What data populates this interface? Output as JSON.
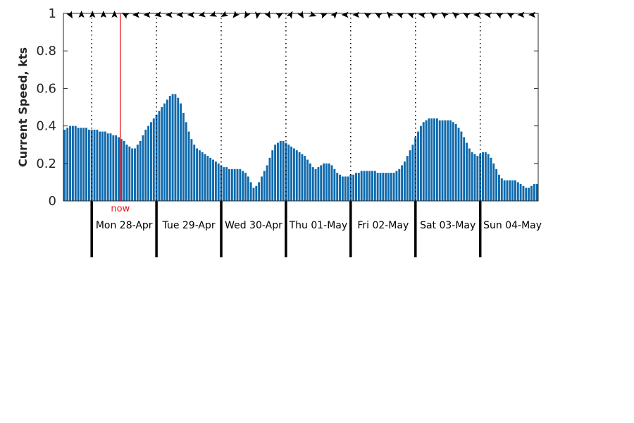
{
  "chart_data": {
    "type": "bar",
    "title": "",
    "ylabel": "Current Speed, kts",
    "ylim": [
      0,
      1
    ],
    "yticks": [
      "0",
      "0.2",
      "0.4",
      "0.6",
      "0.8",
      "1"
    ],
    "grid": false,
    "bar_color": "#0f6aad",
    "now_color": "#e8141c",
    "now_label": "now",
    "now_hour": 10.6,
    "x_start_hour": -10.5,
    "hours_per_bar": 1,
    "day_labels": [
      "Mon 28-Apr",
      "Tue 29-Apr",
      "Wed 30-Apr",
      "Thu 01-May",
      "Fri 02-May",
      "Sat 03-May",
      "Sun 04-May"
    ],
    "day_boundary_hours": [
      0,
      24,
      48,
      72,
      96,
      120,
      144
    ],
    "values": [
      0.38,
      0.39,
      0.4,
      0.4,
      0.4,
      0.39,
      0.39,
      0.39,
      0.39,
      0.38,
      0.38,
      0.38,
      0.38,
      0.37,
      0.37,
      0.37,
      0.36,
      0.36,
      0.35,
      0.35,
      0.34,
      0.33,
      0.32,
      0.3,
      0.29,
      0.28,
      0.28,
      0.3,
      0.32,
      0.35,
      0.38,
      0.4,
      0.42,
      0.44,
      0.46,
      0.48,
      0.5,
      0.52,
      0.54,
      0.56,
      0.57,
      0.57,
      0.55,
      0.52,
      0.47,
      0.42,
      0.37,
      0.33,
      0.3,
      0.28,
      0.27,
      0.26,
      0.25,
      0.24,
      0.23,
      0.22,
      0.21,
      0.2,
      0.19,
      0.18,
      0.18,
      0.17,
      0.17,
      0.17,
      0.17,
      0.17,
      0.16,
      0.15,
      0.13,
      0.1,
      0.07,
      0.08,
      0.1,
      0.13,
      0.16,
      0.19,
      0.23,
      0.27,
      0.3,
      0.31,
      0.32,
      0.32,
      0.31,
      0.3,
      0.29,
      0.28,
      0.27,
      0.26,
      0.25,
      0.24,
      0.22,
      0.2,
      0.18,
      0.17,
      0.18,
      0.19,
      0.2,
      0.2,
      0.2,
      0.19,
      0.17,
      0.15,
      0.14,
      0.13,
      0.13,
      0.13,
      0.14,
      0.14,
      0.15,
      0.15,
      0.16,
      0.16,
      0.16,
      0.16,
      0.16,
      0.16,
      0.15,
      0.15,
      0.15,
      0.15,
      0.15,
      0.15,
      0.15,
      0.16,
      0.17,
      0.19,
      0.21,
      0.24,
      0.27,
      0.3,
      0.34,
      0.37,
      0.4,
      0.42,
      0.43,
      0.44,
      0.44,
      0.44,
      0.44,
      0.43,
      0.43,
      0.43,
      0.43,
      0.43,
      0.42,
      0.41,
      0.39,
      0.37,
      0.34,
      0.31,
      0.28,
      0.26,
      0.25,
      0.24,
      0.25,
      0.26,
      0.26,
      0.25,
      0.23,
      0.2,
      0.17,
      0.14,
      0.12,
      0.11,
      0.11,
      0.11,
      0.11,
      0.11,
      0.1,
      0.09,
      0.08,
      0.07,
      0.07,
      0.08,
      0.09,
      0.09
    ],
    "direction_arrows_deg": [
      150,
      0,
      0,
      0,
      0,
      300,
      270,
      270,
      260,
      270,
      270,
      270,
      260,
      250,
      240,
      220,
      210,
      190,
      150,
      60,
      30,
      150,
      110,
      70,
      40,
      270,
      270,
      300,
      300,
      320,
      290,
      290,
      280,
      310,
      310,
      310,
      300,
      270,
      280,
      300,
      300,
      270,
      270
    ]
  }
}
